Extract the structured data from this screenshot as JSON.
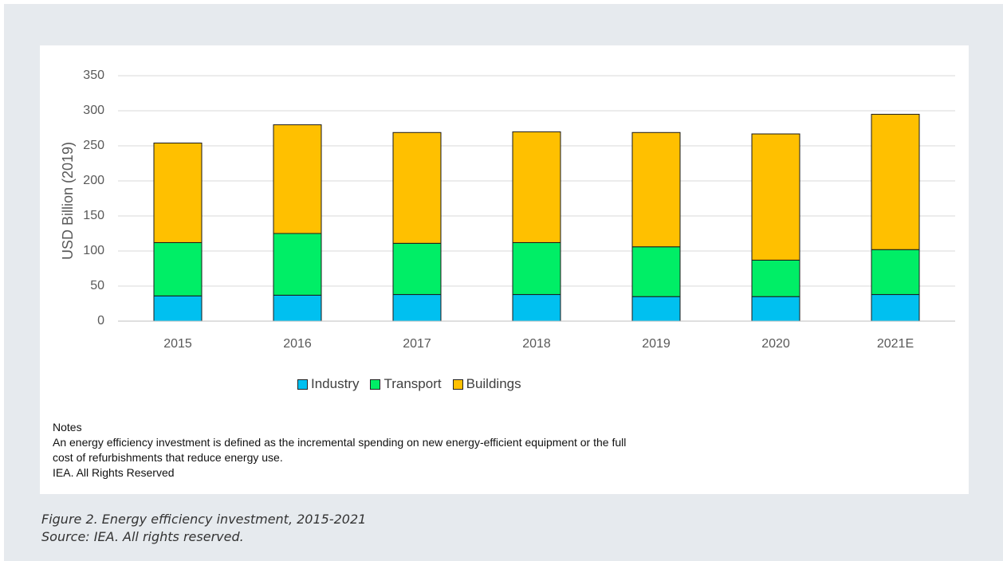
{
  "chart_data": {
    "type": "bar",
    "stacked": true,
    "categories": [
      "2015",
      "2016",
      "2017",
      "2018",
      "2019",
      "2020",
      "2021E"
    ],
    "series": [
      {
        "name": "Industry",
        "color": "#00c0f0",
        "values": [
          36,
          37,
          38,
          38,
          35,
          35,
          38
        ]
      },
      {
        "name": "Transport",
        "color": "#00ee66",
        "values": [
          76,
          88,
          73,
          74,
          71,
          52,
          64
        ]
      },
      {
        "name": "Buildings",
        "color": "#ffc000",
        "values": [
          142,
          155,
          158,
          158,
          163,
          180,
          193
        ]
      }
    ],
    "ylabel": "USD Billion (2019)",
    "xlabel": "",
    "ylim": [
      0,
      350
    ],
    "yticks": [
      "0",
      "50",
      "100",
      "150",
      "200",
      "250",
      "300",
      "350"
    ],
    "grid": true,
    "legend_position": "bottom"
  },
  "notes": {
    "heading": "Notes",
    "line1": "An energy efficiency investment is defined as the incremental spending on new energy-efficient equipment or the full",
    "line2": "cost of refurbishments that reduce energy use.",
    "line3": "IEA. All Rights Reserved"
  },
  "caption": {
    "line1": "Figure 2. Energy efficiency investment, 2015-2021",
    "line2": "Source: IEA. All rights reserved."
  }
}
